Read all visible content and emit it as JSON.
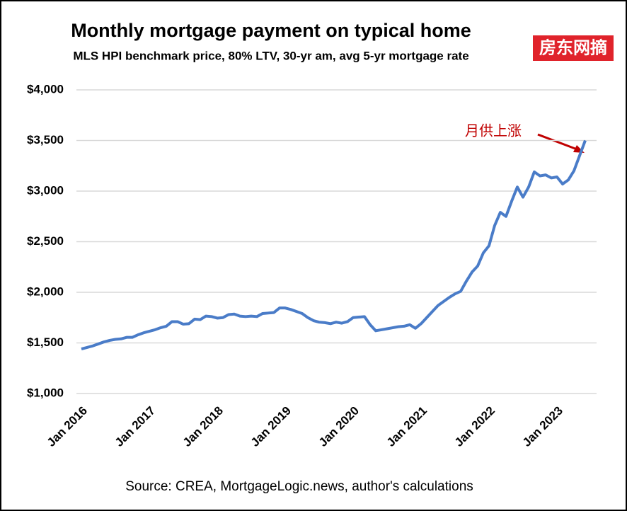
{
  "chart_data": {
    "type": "line",
    "title": "Monthly mortgage payment on typical home",
    "subtitle": "MLS HPI benchmark price, 80% LTV, 30-yr am, avg 5-yr mortgage rate",
    "badge": "房东网摘",
    "annotation": "月供上涨",
    "source": "Source: CREA, MortgageLogic.news, author's calculations",
    "categories": [
      "Jan 2016",
      null,
      null,
      null,
      null,
      null,
      null,
      null,
      null,
      null,
      null,
      null,
      "Jan 2017",
      null,
      null,
      null,
      null,
      null,
      null,
      null,
      null,
      null,
      null,
      null,
      "Jan 2018",
      null,
      null,
      null,
      null,
      null,
      null,
      null,
      null,
      null,
      null,
      null,
      "Jan 2019",
      null,
      null,
      null,
      null,
      null,
      null,
      null,
      null,
      null,
      null,
      null,
      "Jan 2020",
      null,
      null,
      null,
      null,
      null,
      null,
      null,
      null,
      null,
      null,
      null,
      "Jan 2021",
      null,
      null,
      null,
      null,
      null,
      null,
      null,
      null,
      null,
      null,
      null,
      "Jan 2022",
      null,
      null,
      null,
      null,
      null,
      null,
      null,
      null,
      null,
      null,
      null,
      "Jan 2023",
      null,
      null,
      null,
      null,
      null
    ],
    "series": [
      {
        "color": "#4a7cc8",
        "values": [
          1440,
          1455,
          1470,
          1490,
          1510,
          1525,
          1535,
          1540,
          1555,
          1555,
          1580,
          1600,
          1615,
          1630,
          1650,
          1665,
          1710,
          1710,
          1685,
          1690,
          1735,
          1730,
          1765,
          1760,
          1745,
          1750,
          1780,
          1785,
          1765,
          1760,
          1765,
          1760,
          1790,
          1795,
          1800,
          1845,
          1845,
          1830,
          1810,
          1790,
          1750,
          1720,
          1705,
          1700,
          1690,
          1705,
          1695,
          1710,
          1750,
          1755,
          1760,
          1680,
          1620,
          1630,
          1640,
          1650,
          1660,
          1665,
          1680,
          1645,
          1690,
          1750,
          1810,
          1870,
          1910,
          1950,
          1985,
          2010,
          2110,
          2200,
          2260,
          2390,
          2460,
          2660,
          2790,
          2750,
          2900,
          3040,
          2940,
          3040,
          3190,
          3150,
          3160,
          3130,
          3140,
          3070,
          3110,
          3200,
          3350,
          3500
        ]
      }
    ],
    "ylim": [
      1000,
      4000
    ],
    "yticks": [
      {
        "value": 1000,
        "label": "$1,000"
      },
      {
        "value": 1500,
        "label": "$1,500"
      },
      {
        "value": 2000,
        "label": "$2,000"
      },
      {
        "value": 2500,
        "label": "$2,500"
      },
      {
        "value": 3000,
        "label": "$3,000"
      },
      {
        "value": 3500,
        "label": "$3,500"
      },
      {
        "value": 4000,
        "label": "$4,000"
      }
    ],
    "grid": true
  }
}
